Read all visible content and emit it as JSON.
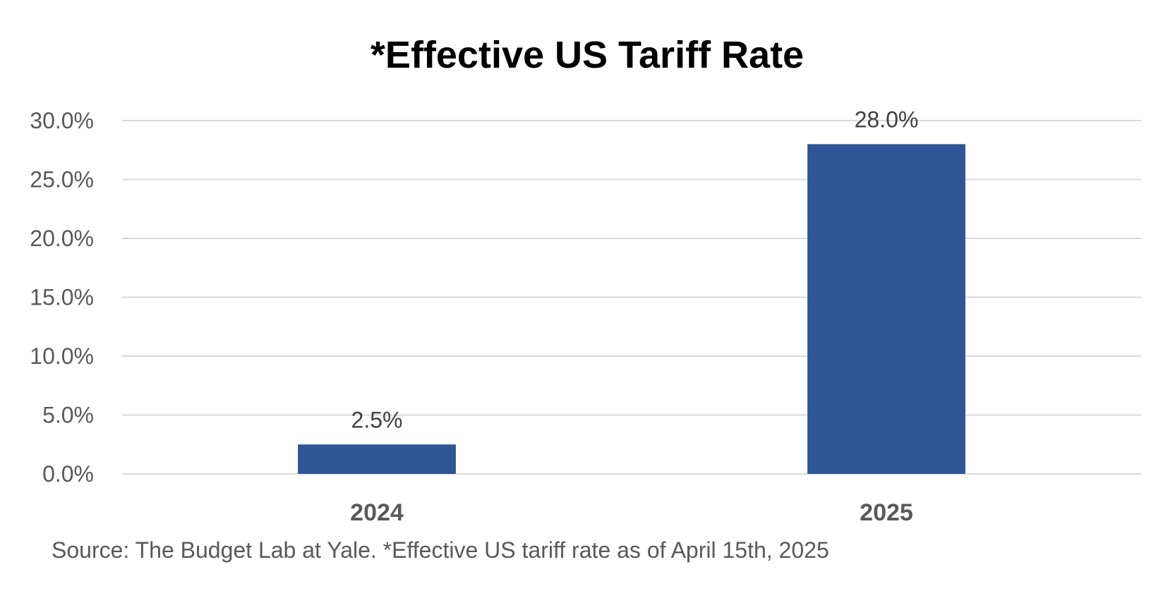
{
  "chart_data": {
    "type": "bar",
    "title": "*Effective US Tariff Rate",
    "categories": [
      "2024",
      "2025"
    ],
    "values": [
      2.5,
      28.0
    ],
    "data_labels": [
      "2.5%",
      "28.0%"
    ],
    "xlabel": "",
    "ylabel": "",
    "ylim": [
      0,
      30
    ],
    "yticks": [
      0,
      5,
      10,
      15,
      20,
      25,
      30
    ],
    "ytick_labels": [
      "0.0%",
      "5.0%",
      "10.0%",
      "15.0%",
      "20.0%",
      "25.0%",
      "30.0%"
    ],
    "grid": true,
    "legend": "none",
    "bar_color": "#2f5597",
    "source_note": "Source: The Budget Lab at Yale. *Effective US tariff rate as of April 15th, 2025"
  }
}
